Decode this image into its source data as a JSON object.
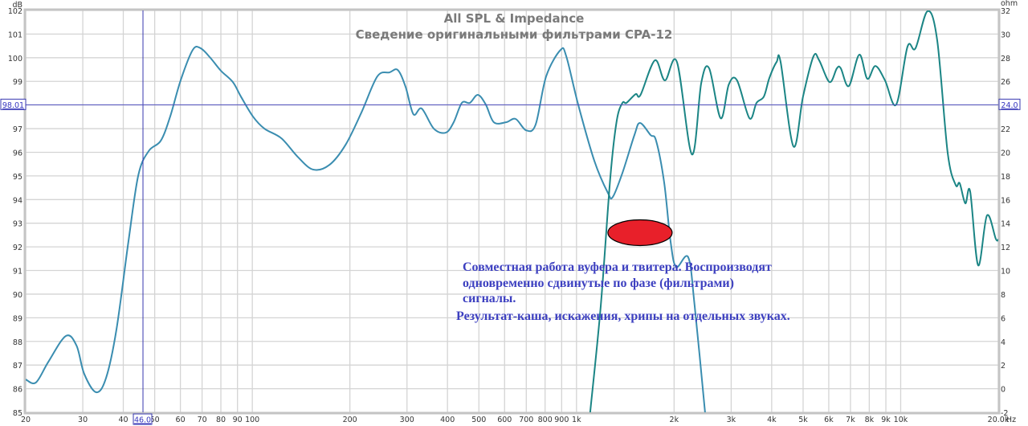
{
  "chart_data": {
    "type": "line",
    "title": "All SPL & Impedance",
    "subtitle": "Сведение оригинальными фильтрами CPA-12",
    "xscale": "log",
    "xlim": [
      20,
      20000
    ],
    "xunit": "Hz",
    "x_ticks": [
      {
        "v": 20,
        "label": "20"
      },
      {
        "v": 30,
        "label": "30"
      },
      {
        "v": 40,
        "label": "40"
      },
      {
        "v": 50,
        "label": "50"
      },
      {
        "v": 60,
        "label": "60"
      },
      {
        "v": 70,
        "label": "70"
      },
      {
        "v": 80,
        "label": "80"
      },
      {
        "v": 90,
        "label": "90"
      },
      {
        "v": 100,
        "label": "100"
      },
      {
        "v": 200,
        "label": "200"
      },
      {
        "v": 300,
        "label": "300"
      },
      {
        "v": 400,
        "label": "400"
      },
      {
        "v": 500,
        "label": "500"
      },
      {
        "v": 600,
        "label": "600"
      },
      {
        "v": 700,
        "label": "700"
      },
      {
        "v": 800,
        "label": "800"
      },
      {
        "v": 900,
        "label": "900"
      },
      {
        "v": 1000,
        "label": "1k"
      },
      {
        "v": 2000,
        "label": "2k"
      },
      {
        "v": 3000,
        "label": "3k"
      },
      {
        "v": 4000,
        "label": "4k"
      },
      {
        "v": 5000,
        "label": "5k"
      },
      {
        "v": 6000,
        "label": "6k"
      },
      {
        "v": 7000,
        "label": "7k"
      },
      {
        "v": 8000,
        "label": "8k"
      },
      {
        "v": 9000,
        "label": "9k"
      },
      {
        "v": 10000,
        "label": "10k"
      },
      {
        "v": 20000,
        "label": "20.0k"
      }
    ],
    "y_left": {
      "unit": "dB",
      "lim": [
        85,
        102
      ],
      "ticks": [
        85,
        86,
        87,
        88,
        89,
        90,
        91,
        92,
        93,
        94,
        95,
        96,
        97,
        98,
        99,
        100,
        101,
        102
      ]
    },
    "y_right": {
      "unit": "ohm",
      "lim": [
        -2,
        32
      ],
      "ticks": [
        -2,
        0,
        2,
        4,
        6,
        8,
        10,
        12,
        14,
        16,
        18,
        20,
        22,
        24,
        26,
        28,
        30,
        32
      ]
    },
    "grid": true,
    "cursor": {
      "x_label": "46.0",
      "y_left_label": "98.01",
      "y_right_label": "24.0",
      "x": 46.0,
      "y": 98.01
    },
    "series": [
      {
        "color": "#3a8db0",
        "points": [
          [
            20,
            86.39
          ],
          [
            21.5,
            86.26
          ],
          [
            23.5,
            87.14
          ],
          [
            26.6,
            88.23
          ],
          [
            28.7,
            87.82
          ],
          [
            30.3,
            86.63
          ],
          [
            33.0,
            85.85
          ],
          [
            35.4,
            86.46
          ],
          [
            38.1,
            88.5
          ],
          [
            41.5,
            92.24
          ],
          [
            44.5,
            95.03
          ],
          [
            47.9,
            96.05
          ],
          [
            52.2,
            96.49
          ],
          [
            55.8,
            97.51
          ],
          [
            60.1,
            99.04
          ],
          [
            65.5,
            100.33
          ],
          [
            69.3,
            100.4
          ],
          [
            74.3,
            99.99
          ],
          [
            80,
            99.45
          ],
          [
            87.1,
            98.97
          ],
          [
            92.2,
            98.36
          ],
          [
            100.5,
            97.51
          ],
          [
            109,
            97.0
          ],
          [
            123,
            96.59
          ],
          [
            138,
            95.81
          ],
          [
            154,
            95.27
          ],
          [
            173,
            95.47
          ],
          [
            194,
            96.32
          ],
          [
            217,
            97.68
          ],
          [
            243,
            99.21
          ],
          [
            265,
            99.38
          ],
          [
            281,
            99.48
          ],
          [
            297,
            98.77
          ],
          [
            314,
            97.61
          ],
          [
            333,
            97.85
          ],
          [
            363,
            97.0
          ],
          [
            395,
            96.83
          ],
          [
            418,
            97.27
          ],
          [
            443,
            98.09
          ],
          [
            469,
            98.09
          ],
          [
            496,
            98.43
          ],
          [
            525,
            98.02
          ],
          [
            556,
            97.27
          ],
          [
            606,
            97.27
          ],
          [
            649,
            97.41
          ],
          [
            699,
            96.93
          ],
          [
            748,
            97.17
          ],
          [
            806,
            99.21
          ],
          [
            893,
            100.33
          ],
          [
            930,
            100.06
          ],
          [
            1012,
            98.02
          ],
          [
            1135,
            95.64
          ],
          [
            1250,
            94.28
          ],
          [
            1294,
            94.11
          ],
          [
            1386,
            95.13
          ],
          [
            1509,
            96.73
          ],
          [
            1570,
            97.24
          ],
          [
            1692,
            96.73
          ],
          [
            1760,
            96.49
          ],
          [
            1864,
            94.72
          ],
          [
            1950,
            92.24
          ],
          [
            2030,
            91.15
          ],
          [
            2211,
            91.56
          ],
          [
            2314,
            89.52
          ],
          [
            2492,
            85.0
          ]
        ]
      },
      {
        "color": "#1b8585",
        "points": [
          [
            1102,
            85.0
          ],
          [
            1188,
            89.5
          ],
          [
            1272,
            94.96
          ],
          [
            1331,
            97.34
          ],
          [
            1386,
            98.09
          ],
          [
            1426,
            98.09
          ],
          [
            1522,
            98.46
          ],
          [
            1576,
            98.43
          ],
          [
            1745,
            99.89
          ],
          [
            1874,
            99.04
          ],
          [
            2041,
            99.82
          ],
          [
            2270,
            95.91
          ],
          [
            2426,
            98.94
          ],
          [
            2566,
            99.55
          ],
          [
            2784,
            97.44
          ],
          [
            2950,
            98.87
          ],
          [
            3128,
            99.04
          ],
          [
            3416,
            97.44
          ],
          [
            3592,
            98.09
          ],
          [
            3785,
            98.36
          ],
          [
            3934,
            99.14
          ],
          [
            4142,
            99.82
          ],
          [
            4262,
            99.82
          ],
          [
            4668,
            96.25
          ],
          [
            4998,
            98.36
          ],
          [
            5383,
            100.06
          ],
          [
            5604,
            99.89
          ],
          [
            6034,
            98.97
          ],
          [
            6354,
            99.55
          ],
          [
            6536,
            99.55
          ],
          [
            6918,
            98.8
          ],
          [
            7452,
            100.13
          ],
          [
            7890,
            99.11
          ],
          [
            8354,
            99.65
          ],
          [
            8946,
            99.04
          ],
          [
            9688,
            98.02
          ],
          [
            10496,
            100.47
          ],
          [
            11108,
            100.4
          ],
          [
            12100,
            101.97
          ],
          [
            12960,
            100.74
          ],
          [
            13960,
            95.98
          ],
          [
            14774,
            94.62
          ],
          [
            15204,
            94.69
          ],
          [
            15824,
            93.84
          ],
          [
            16374,
            94.35
          ],
          [
            17334,
            91.22
          ],
          [
            18458,
            93.33
          ],
          [
            19650,
            92.34
          ],
          [
            20000,
            92.31
          ]
        ]
      }
    ],
    "marker": {
      "color": "#e8202a",
      "at": [
        1500,
        92.6
      ]
    }
  },
  "annotation": {
    "lines": [
      "Совместная работа вуфера и твитера. Воспроизводят",
      "одновременно сдвинутые по фазе (фильтрами)",
      "сигналы."
    ],
    "conclusion": "Результат-каша, искажения, хрипы на отдельных звуках."
  }
}
